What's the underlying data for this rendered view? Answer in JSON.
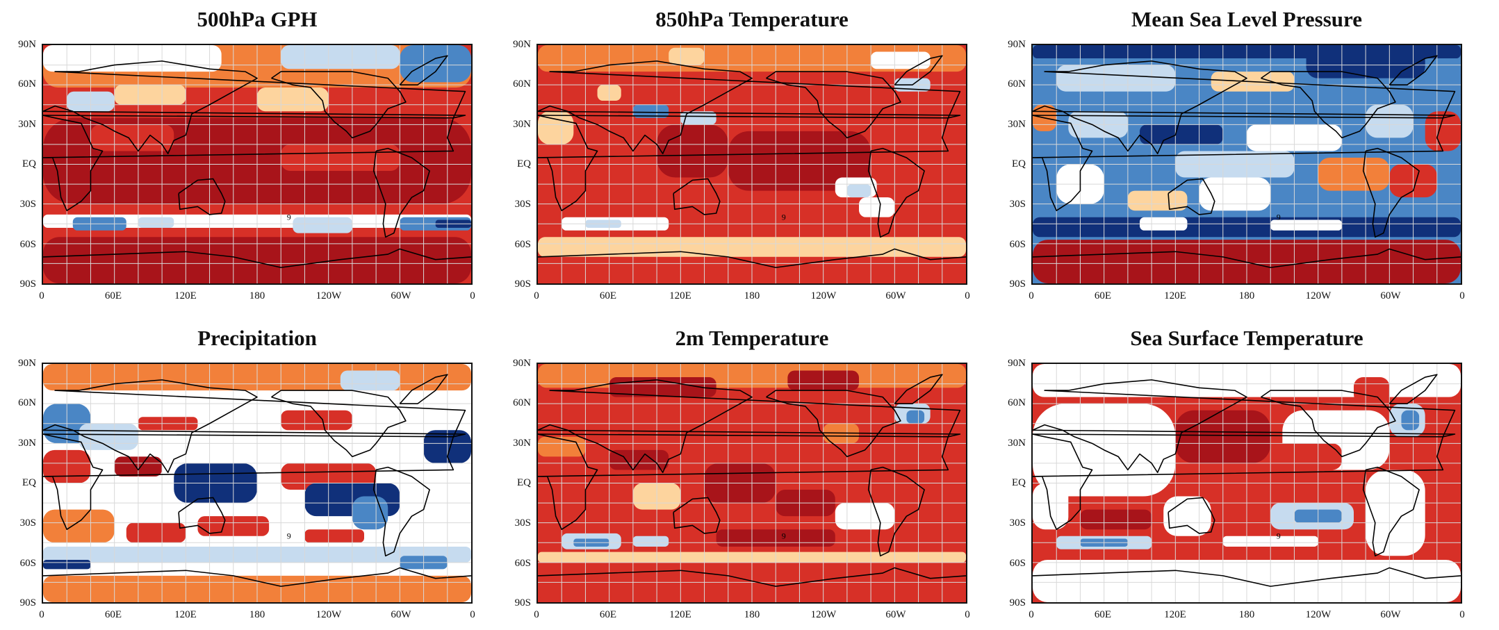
{
  "figure": {
    "lat_labels": [
      "90N",
      "60N",
      "30N",
      "EQ",
      "30S",
      "60S",
      "90S"
    ],
    "lon_labels": [
      "0",
      "60E",
      "120E",
      "180",
      "120W",
      "60W",
      "0"
    ],
    "contour_label": "9",
    "colors": {
      "dark_red": "#a8141a",
      "red": "#d73027",
      "orange": "#f2803a",
      "light_orange": "#fdd49e",
      "white": "#ffffff",
      "light_blue": "#c6dbef",
      "mid_blue": "#4a86c5",
      "dark_blue": "#10307a",
      "land_outline": "#000000",
      "grid": "#d8d8d8"
    },
    "panels": [
      {
        "title": "500hPa GPH",
        "pattern": "gph"
      },
      {
        "title": "850hPa Temperature",
        "pattern": "t850"
      },
      {
        "title": "Mean Sea Level Pressure",
        "pattern": "mslp"
      },
      {
        "title": "Precipitation",
        "pattern": "precip"
      },
      {
        "title": "2m Temperature",
        "pattern": "t2m"
      },
      {
        "title": "Sea Surface Temperature",
        "pattern": "sst"
      }
    ]
  }
}
